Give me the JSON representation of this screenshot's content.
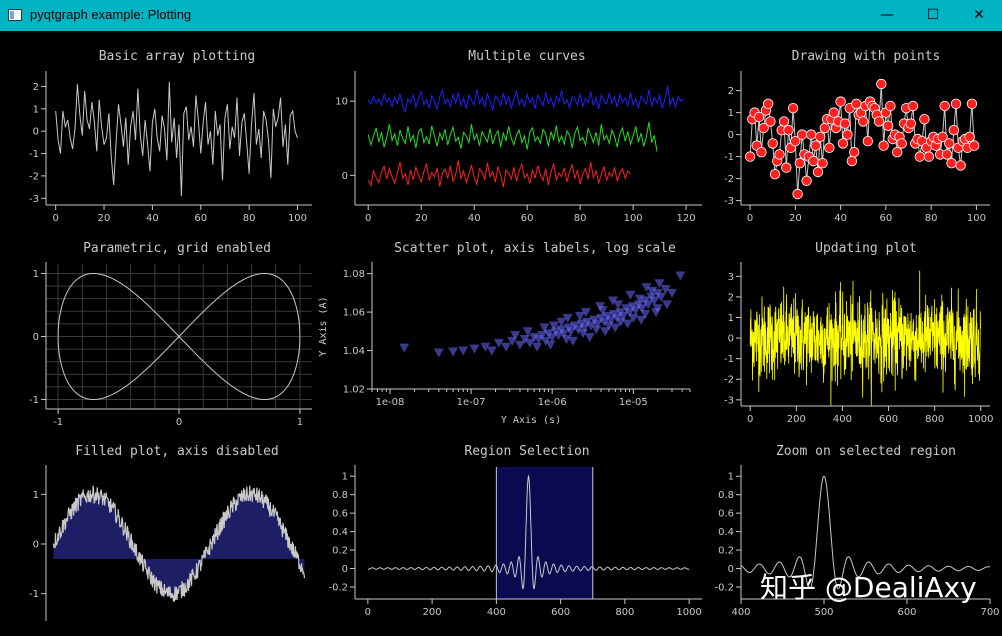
{
  "window": {
    "title": "pyqtgraph example: Plotting",
    "min_glyph": "—",
    "max_glyph": "☐",
    "close_glyph": "✕"
  },
  "watermark": "知乎 @DealiAxy",
  "chart_data": [
    {
      "id": "p1",
      "type": "line",
      "title": "Basic array plotting",
      "xlim": [
        -4,
        106
      ],
      "ylim": [
        -3.3,
        2.6
      ],
      "xticks": [
        0,
        20,
        40,
        60,
        80,
        100
      ],
      "yticks": [
        -3,
        -2,
        -1,
        0,
        1,
        2
      ],
      "series": [
        {
          "color": "#c8c8c8",
          "values": [
            0.9,
            -0.4,
            -1.0,
            0.9,
            0.2,
            0.5,
            -0.3,
            -0.8,
            0.1,
            2.1,
            0.7,
            -0.2,
            1.8,
            0.5,
            0.1,
            1.3,
            0.4,
            -0.9,
            1.4,
            0.2,
            -0.6,
            -0.3,
            0.8,
            -1.2,
            -2.4,
            -0.5,
            1.2,
            0.3,
            -0.7,
            0.6,
            -1.5,
            0.2,
            0.9,
            -0.4,
            1.9,
            -0.2,
            -1.1,
            0.5,
            -0.6,
            -1.8,
            0.4,
            1.0,
            -0.3,
            -0.9,
            0.7,
            0.1,
            -1.3,
            2.2,
            -0.5,
            0.6,
            -1.2,
            0.3,
            -2.9,
            0.8,
            1.1,
            -0.4,
            0.2,
            -0.7,
            1.6,
            0.5,
            -1.0,
            0.4,
            1.3,
            -0.6,
            0.0,
            -1.5,
            0.9,
            -0.2,
            0.3,
            -2.2,
            0.6,
            1.2,
            -0.8,
            0.2,
            -0.3,
            1.5,
            -1.1,
            0.4,
            0.8,
            -0.5,
            -1.9,
            0.3,
            1.7,
            -0.6,
            0.1,
            -1.2,
            0.9,
            0.5,
            -0.4,
            -2.1,
            1.0,
            0.2,
            0.6,
            1.5,
            -0.7,
            0.3,
            -1.5,
            0.7,
            0.9,
            0.0,
            -0.3
          ]
        }
      ]
    },
    {
      "id": "p2",
      "type": "line",
      "title": "Multiple curves",
      "xlim": [
        -5,
        126
      ],
      "ylim": [
        -4,
        13.8
      ],
      "xticks": [
        0,
        20,
        40,
        60,
        80,
        100,
        120
      ],
      "yticks": [
        0,
        10
      ],
      "series": [
        {
          "color": "#ff2020",
          "x0": 0,
          "x1": 99,
          "offset": 0,
          "values": [
            -0.6,
            -1.4,
            0.6,
            -0.3,
            -1.0,
            0.4,
            1.2,
            -0.5,
            0.9,
            -0.2,
            -1.1,
            0.3,
            1.8,
            -0.4,
            0.2,
            -1.3,
            0.7,
            -0.6,
            1.1,
            0.0,
            -0.9,
            0.5,
            1.6,
            -0.7,
            0.4,
            -0.2,
            1.0,
            -1.5,
            0.3,
            0.8,
            -0.4,
            1.3,
            -0.8,
            0.1,
            2.0,
            -0.5,
            0.6,
            -1.0,
            0.2,
            1.4,
            -0.3,
            -1.2,
            0.9,
            0.4,
            -0.6,
            1.7,
            -0.2,
            0.5,
            -0.9,
            1.2,
            0.0,
            -1.6,
            0.7,
            0.3,
            -0.5,
            1.1,
            -0.8,
            0.6,
            1.5,
            -0.3,
            0.2,
            -1.1,
            0.8,
            -0.4,
            1.3,
            0.1,
            -0.7,
            0.9,
            -1.3,
            0.4,
            1.6,
            -0.6,
            0.3,
            -0.2,
            1.0,
            -0.9,
            0.5,
            1.4,
            -0.4,
            0.7,
            -1.2,
            0.2,
            0.9,
            -0.5,
            1.8,
            -0.3,
            0.6,
            -1.0,
            0.1,
            1.2,
            -0.7,
            0.4,
            -0.2,
            1.1,
            -0.8,
            0.3,
            0.9,
            -0.4,
            0.6,
            0.2
          ]
        },
        {
          "color": "#20e020",
          "x0": 0,
          "x1": 109,
          "offset": 5,
          "values": [
            0.5,
            -0.9,
            0.3,
            1.4,
            -0.5,
            0.8,
            -1.2,
            0.2,
            1.9,
            -0.3,
            0.6,
            -1.0,
            1.1,
            0.0,
            -0.7,
            1.6,
            -0.4,
            0.4,
            -1.3,
            0.9,
            1.3,
            -0.6,
            0.2,
            -0.8,
            1.7,
            0.3,
            -1.1,
            0.7,
            -0.2,
            1.2,
            -0.9,
            0.5,
            1.5,
            -0.4,
            0.1,
            -1.4,
            0.8,
            0.3,
            -0.6,
            1.9,
            -0.2,
            0.6,
            -1.0,
            0.9,
            0.2,
            -0.5,
            1.3,
            -0.8,
            0.4,
            1.0,
            -1.2,
            0.7,
            -0.3,
            1.6,
            0.0,
            -0.9,
            0.5,
            1.1,
            -0.6,
            0.3,
            -1.5,
            0.8,
            1.4,
            -0.4,
            0.2,
            -0.7,
            1.2,
            0.6,
            -1.1,
            0.9,
            -0.2,
            1.7,
            -0.5,
            0.3,
            -0.8,
            1.0,
            0.4,
            -1.3,
            0.7,
            1.5,
            -0.3,
            0.1,
            -0.9,
            1.3,
            0.5,
            -0.6,
            0.8,
            -1.0,
            1.9,
            -0.2,
            0.4,
            -0.7,
            1.1,
            0.2,
            -1.2,
            0.6,
            1.4,
            -0.4,
            0.9,
            -0.8,
            0.3,
            1.6,
            -0.5,
            0.7,
            -1.1,
            0.2,
            2.2,
            -0.6,
            0.4,
            -1.8
          ]
        },
        {
          "color": "#2020ff",
          "x0": 0,
          "x1": 119,
          "offset": 10,
          "values": [
            0.2,
            -0.4,
            0.6,
            -0.2,
            0.3,
            -0.5,
            0.9,
            -0.1,
            0.4,
            -0.7,
            0.5,
            -0.3,
            1.0,
            -0.6,
            -1.4,
            0.3,
            -0.2,
            0.8,
            -0.8,
            0.4,
            1.3,
            -0.5,
            0.2,
            -0.9,
            0.7,
            0.0,
            -1.1,
            0.6,
            1.5,
            -0.4,
            0.3,
            -0.7,
            0.9,
            -0.2,
            1.2,
            -0.6,
            0.4,
            -1.0,
            0.8,
            0.1,
            -0.5,
            1.6,
            -0.3,
            0.5,
            -0.8,
            1.0,
            -0.1,
            -1.2,
            0.7,
            0.3,
            -0.6,
            1.1,
            -0.4,
            0.6,
            -0.9,
            0.2,
            1.4,
            -0.5,
            0.3,
            -0.7,
            0.9,
            -0.2,
            0.5,
            -1.0,
            0.8,
            0.1,
            -0.6,
            1.2,
            -0.3,
            0.4,
            -0.8,
            0.7,
            -0.1,
            1.5,
            -0.4,
            0.2,
            -0.9,
            0.6,
            0.3,
            -0.5,
            1.0,
            -0.7,
            0.4,
            -0.2,
            1.3,
            -0.6,
            0.5,
            -1.1,
            0.8,
            0.0,
            -0.4,
            1.1,
            -0.3,
            0.6,
            -0.8,
            0.9,
            -0.2,
            0.4,
            -0.6,
            1.2,
            -0.5,
            0.3,
            -0.9,
            0.7,
            0.1,
            -0.4,
            1.6,
            -0.7,
            0.5,
            -0.2,
            0.8,
            -1.0,
            0.3,
            2.1,
            -0.5,
            0.4,
            -0.8,
            0.6,
            0.0,
            0.3
          ]
        }
      ]
    },
    {
      "id": "p3",
      "type": "scatter",
      "title": "Drawing with points",
      "xlim": [
        -4,
        106
      ],
      "ylim": [
        -3.2,
        2.8
      ],
      "xticks": [
        0,
        20,
        40,
        60,
        80,
        100
      ],
      "yticks": [
        -3,
        -2,
        -1,
        0,
        1,
        2
      ],
      "marker": "circle",
      "marker_color": "#ff2020",
      "line_color": "#c8c8c8",
      "values": [
        -1.0,
        0.7,
        1.0,
        -0.5,
        0.8,
        -0.8,
        0.3,
        1.1,
        1.4,
        0.6,
        -0.4,
        -1.8,
        -1.2,
        -0.9,
        0.2,
        0.6,
        -1.5,
        0.2,
        -0.6,
        1.2,
        -0.3,
        -2.7,
        -1.3,
        0.0,
        -0.9,
        -2.1,
        -1.0,
        0.0,
        -1.2,
        -0.5,
        -1.7,
        -0.1,
        -1.3,
        0.3,
        0.7,
        -0.6,
        0.7,
        1.0,
        0.3,
        0.6,
        1.5,
        -0.4,
        0.5,
        0.0,
        1.2,
        -1.2,
        -0.8,
        1.4,
        0.9,
        1.0,
        0.6,
        1.3,
        -0.3,
        1.5,
        1.3,
        1.2,
        0.9,
        0.6,
        2.3,
        -0.5,
        1.0,
        0.4,
        1.3,
        -0.2,
        0.0,
        -0.8,
        -0.1,
        -0.4,
        0.5,
        1.2,
        0.3,
        0.5,
        1.3,
        -0.4,
        -0.2,
        -1.0,
        -0.3,
        0.7,
        -0.6,
        -1.0,
        -0.3,
        -0.1,
        -0.5,
        -0.2,
        -0.9,
        -0.1,
        1.3,
        -0.9,
        -0.4,
        -1.3,
        0.2,
        1.4,
        -0.6,
        -1.4,
        -0.3,
        -0.2,
        -0.6,
        -0.1,
        1.4,
        -0.5
      ]
    },
    {
      "id": "p4",
      "type": "line",
      "title": "Parametric, grid enabled",
      "xlim": [
        -1.1,
        1.1
      ],
      "ylim": [
        -1.15,
        1.15
      ],
      "xticks": [
        -1,
        0,
        1
      ],
      "yticks": [
        -1,
        0,
        1
      ],
      "grid": true,
      "series": [
        {
          "color": "#c8c8c8",
          "param": "x=cos(t), y=sin(2t)"
        }
      ]
    },
    {
      "id": "p5",
      "type": "scatter",
      "title": "Scatter plot, axis labels, log scale",
      "xlabel": "Y Axis (s)",
      "ylabel": "Y Axis (A)",
      "xscale": "log",
      "xlim": [
        6e-09,
        5e-05
      ],
      "ylim": [
        1.02,
        1.085
      ],
      "xticks": [
        1e-08,
        1e-07,
        1e-06,
        1e-05
      ],
      "xticklabels": [
        "1e-08",
        "1e-07",
        "1e-06",
        "1e-05"
      ],
      "yticks": [
        1.02,
        1.04,
        1.06,
        1.08
      ],
      "marker": "triangle-down",
      "marker_color": "#6a6aff",
      "points": [
        [
          1.5e-08,
          1.0415
        ],
        [
          4e-08,
          1.039
        ],
        [
          6e-08,
          1.0395
        ],
        [
          8e-08,
          1.04
        ],
        [
          1.1e-07,
          1.041
        ],
        [
          1.5e-07,
          1.042
        ],
        [
          1.8e-07,
          1.04
        ],
        [
          2.2e-07,
          1.044
        ],
        [
          2.7e-07,
          1.042
        ],
        [
          3.2e-07,
          1.045
        ],
        [
          4e-07,
          1.043
        ],
        [
          4.6e-07,
          1.046
        ],
        [
          5.3e-07,
          1.044
        ],
        [
          6e-07,
          1.047
        ],
        [
          6.8e-07,
          1.046
        ],
        [
          7.5e-07,
          1.048
        ],
        [
          8.3e-07,
          1.045
        ],
        [
          9e-07,
          1.049
        ],
        [
          1e-06,
          1.047
        ],
        [
          1.1e-06,
          1.05
        ],
        [
          1.2e-06,
          1.048
        ],
        [
          1.3e-06,
          1.051
        ],
        [
          1.4e-06,
          1.049
        ],
        [
          1.6e-06,
          1.052
        ],
        [
          1.7e-06,
          1.05
        ],
        [
          1.9e-06,
          1.053
        ],
        [
          2.1e-06,
          1.051
        ],
        [
          2.3e-06,
          1.054
        ],
        [
          2.5e-06,
          1.052
        ],
        [
          2.7e-06,
          1.055
        ],
        [
          3e-06,
          1.053
        ],
        [
          3.3e-06,
          1.056
        ],
        [
          3.6e-06,
          1.054
        ],
        [
          4e-06,
          1.057
        ],
        [
          4.4e-06,
          1.055
        ],
        [
          4.8e-06,
          1.058
        ],
        [
          5.3e-06,
          1.056
        ],
        [
          5.8e-06,
          1.059
        ],
        [
          6.3e-06,
          1.057
        ],
        [
          6.9e-06,
          1.06
        ],
        [
          7.5e-06,
          1.058
        ],
        [
          8.2e-06,
          1.062
        ],
        [
          9e-06,
          1.06
        ],
        [
          9.8e-06,
          1.063
        ],
        [
          1.07e-05,
          1.061
        ],
        [
          1.17e-05,
          1.064
        ],
        [
          1.28e-05,
          1.062
        ],
        [
          1.4e-05,
          1.066
        ],
        [
          1.53e-05,
          1.064
        ],
        [
          1.67e-05,
          1.068
        ],
        [
          1.82e-05,
          1.066
        ],
        [
          2e-05,
          1.07
        ],
        [
          2.2e-05,
          1.068
        ],
        [
          2.5e-05,
          1.072
        ],
        [
          3e-05,
          1.07
        ],
        [
          3.8e-05,
          1.079
        ],
        [
          1.5e-06,
          1.046
        ],
        [
          2.4e-06,
          1.049
        ],
        [
          3.5e-06,
          1.051
        ],
        [
          5e-06,
          1.053
        ],
        [
          7e-06,
          1.055
        ],
        [
          1e-05,
          1.057
        ],
        [
          1.4e-05,
          1.059
        ],
        [
          2e-05,
          1.062
        ],
        [
          8e-07,
          1.052
        ],
        [
          1.3e-06,
          1.055
        ],
        [
          2.2e-06,
          1.058
        ],
        [
          4.2e-06,
          1.061
        ],
        [
          6.5e-06,
          1.064
        ],
        [
          1.2e-05,
          1.067
        ],
        [
          1.7e-05,
          1.071
        ],
        [
          3.5e-07,
          1.048
        ],
        [
          9.5e-07,
          1.043
        ],
        [
          1.8e-06,
          1.045
        ],
        [
          2.9e-06,
          1.047
        ],
        [
          4.5e-06,
          1.05
        ],
        [
          6e-06,
          1.052
        ],
        [
          8.5e-06,
          1.054
        ],
        [
          1.25e-05,
          1.056
        ],
        [
          1.9e-05,
          1.06
        ],
        [
          2.6e-05,
          1.064
        ],
        [
          5e-07,
          1.05
        ],
        [
          6.5e-07,
          1.042
        ],
        [
          1.05e-06,
          1.053
        ],
        [
          1.55e-06,
          1.057
        ],
        [
          2.6e-06,
          1.06
        ],
        [
          3.9e-06,
          1.063
        ],
        [
          5.6e-06,
          1.066
        ],
        [
          9.2e-06,
          1.069
        ],
        [
          1.45e-05,
          1.073
        ],
        [
          2.1e-05,
          1.075
        ]
      ]
    },
    {
      "id": "p6",
      "type": "line",
      "title": "Updating plot",
      "xlim": [
        -40,
        1040
      ],
      "ylim": [
        -3.3,
        3.6
      ],
      "xticks": [
        0,
        200,
        400,
        600,
        800,
        1000
      ],
      "yticks": [
        -3,
        -2,
        -1,
        0,
        1,
        2,
        3
      ],
      "series": [
        {
          "color": "#ffff00",
          "n": 1000,
          "noise": "gaussian"
        }
      ]
    },
    {
      "id": "p7",
      "type": "area",
      "title": "Filled plot, axis disabled",
      "xlim": [
        -0.3,
        10.3
      ],
      "ylim": [
        -1.55,
        1.55
      ],
      "yticks": [
        -1,
        0,
        1
      ],
      "fill_level": -0.3,
      "fill_color": "#1e1e64",
      "line_color": "#c8c8c8",
      "series": [
        {
          "formula": "sin(x) + noise",
          "x0": 0,
          "x1": 10
        }
      ]
    },
    {
      "id": "p8",
      "type": "line",
      "title": "Region Selection",
      "xlim": [
        -40,
        1040
      ],
      "ylim": [
        -0.33,
        1.1
      ],
      "xticks": [
        0,
        200,
        400,
        600,
        800,
        1000
      ],
      "yticks": [
        -0.2,
        0,
        0.2,
        0.4,
        0.6,
        0.8,
        1
      ],
      "region": [
        400,
        700
      ],
      "region_color": "#0a0a50",
      "series": [
        {
          "color": "#c8c8c8",
          "formula": "sinc"
        }
      ]
    },
    {
      "id": "p9",
      "type": "line",
      "title": "Zoom on selected region",
      "xlim": [
        400,
        700
      ],
      "ylim": [
        -0.33,
        1.1
      ],
      "xticks": [
        400,
        500,
        600,
        700
      ],
      "yticks": [
        -0.2,
        0,
        0.2,
        0.4,
        0.6,
        0.8,
        1
      ],
      "series": [
        {
          "color": "#c8c8c8",
          "formula": "sinc"
        }
      ]
    }
  ]
}
